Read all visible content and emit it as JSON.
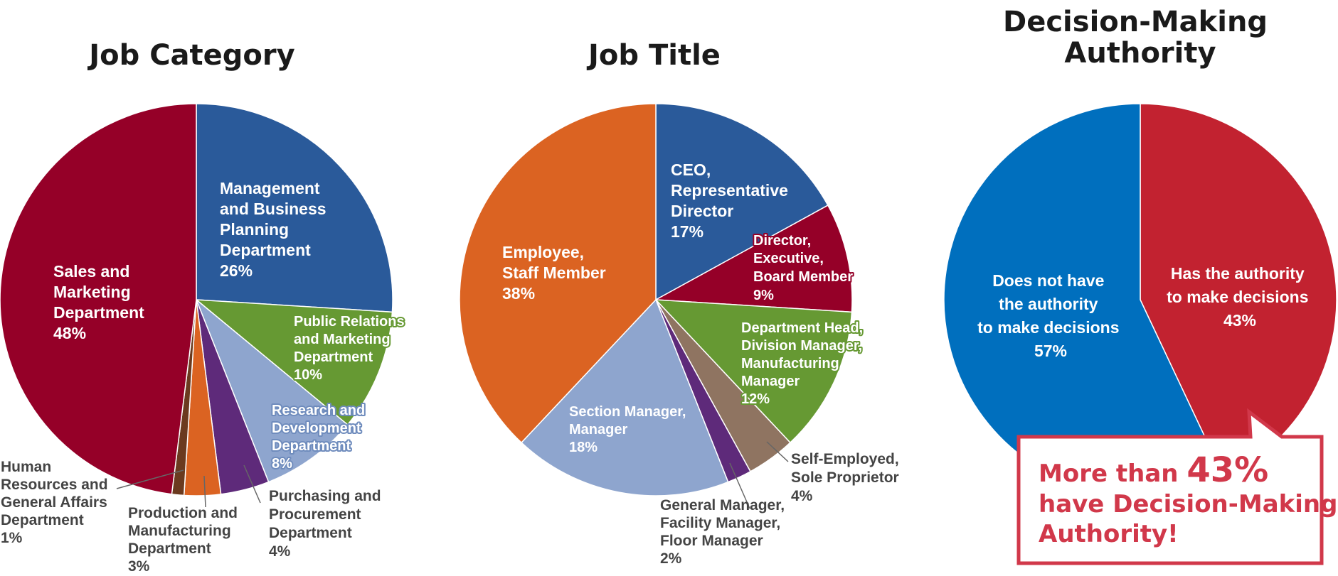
{
  "chart_data": [
    {
      "type": "pie",
      "title": "Job Category",
      "slices": [
        {
          "label": [
            "Management",
            "and Business",
            "Planning",
            "Department",
            "26%"
          ],
          "value": 26,
          "color": "#2a5a9a"
        },
        {
          "label": [
            "Public Relations",
            "and Marketing",
            "Department",
            "10%"
          ],
          "value": 10,
          "color": "#669933"
        },
        {
          "label": [
            "Research and",
            "Development",
            "Department",
            "8%"
          ],
          "value": 8,
          "color": "#8ea5ce"
        },
        {
          "label": [
            "Purchasing and",
            "Procurement",
            "Department",
            "4%"
          ],
          "value": 4,
          "color": "#5e2a7a"
        },
        {
          "label": [
            "Production and",
            "Manufacturing",
            "Department",
            "3%"
          ],
          "value": 3,
          "color": "#db6322"
        },
        {
          "label": [
            "Human",
            "Resources and",
            "General Affairs",
            "Department",
            "1%"
          ],
          "value": 1,
          "color": "#6b3a1f"
        },
        {
          "label": [
            "Sales and",
            "Marketing",
            "Department",
            "48%"
          ],
          "value": 48,
          "color": "#950028"
        }
      ]
    },
    {
      "type": "pie",
      "title": "Job Title",
      "slices": [
        {
          "label": [
            "CEO,",
            "Representative",
            "Director",
            "17%"
          ],
          "value": 17,
          "color": "#2a5a9a"
        },
        {
          "label": [
            "Director,",
            "Executive,",
            "Board Member",
            "9%"
          ],
          "value": 9,
          "color": "#950028"
        },
        {
          "label": [
            "Department Head,",
            "Division Manager,",
            "Manufacturing",
            "Manager",
            "12%"
          ],
          "value": 12,
          "color": "#669933"
        },
        {
          "label": [
            "Self-Employed,",
            "Sole Proprietor",
            "4%"
          ],
          "value": 4,
          "color": "#8f7461"
        },
        {
          "label": [
            "General Manager,",
            "Facility Manager,",
            "Floor Manager",
            "2%"
          ],
          "value": 2,
          "color": "#5e2a7a"
        },
        {
          "label": [
            "Section Manager,",
            "Manager",
            "18%"
          ],
          "value": 18,
          "color": "#8ea5ce"
        },
        {
          "label": [
            "Employee,",
            "Staff Member",
            "38%"
          ],
          "value": 38,
          "color": "#db6322"
        }
      ]
    },
    {
      "type": "pie",
      "title": [
        "Decision-Making",
        "Authority"
      ],
      "slices": [
        {
          "label": [
            "Has the authority",
            "to make decisions",
            "43%"
          ],
          "value": 43,
          "color": "#c22230"
        },
        {
          "label": [
            "Does not have",
            "the authority",
            "to make decisions",
            "57%"
          ],
          "value": 57,
          "color": "#006fbe"
        }
      ]
    }
  ],
  "callout": {
    "line1_prefix": "More than ",
    "line1_number": "43%",
    "line2": "have Decision-Making",
    "line3": "Authority!",
    "color": "#d1384a"
  }
}
